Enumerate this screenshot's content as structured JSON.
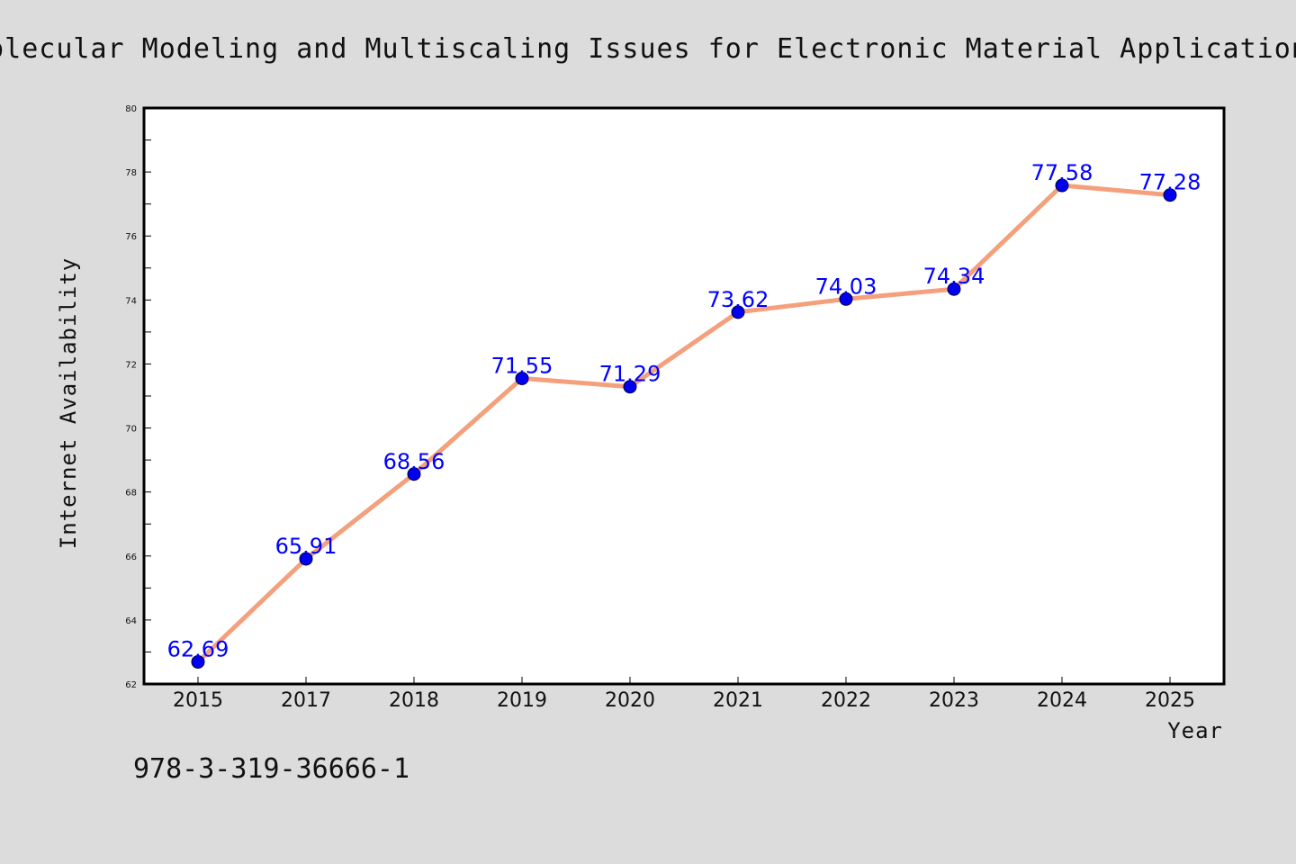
{
  "colors": {
    "background": "#dcdcdc",
    "plot_background": "#ffffff",
    "line": "#f4a07c",
    "marker": "#0000ee",
    "label": "#0000ff"
  },
  "footer": {
    "text": "978-3-319-36666-1"
  },
  "chart_data": {
    "type": "line",
    "title": "Molecular Modeling and Multiscaling Issues for Electronic Material Applications",
    "xlabel": "Year",
    "ylabel": "Internet Availability",
    "categories": [
      "2015",
      "2017",
      "2018",
      "2019",
      "2020",
      "2021",
      "2022",
      "2023",
      "2024",
      "2025"
    ],
    "series": [
      {
        "values": [
          62.69,
          65.91,
          68.56,
          71.55,
          71.29,
          73.62,
          74.03,
          74.34,
          77.58,
          77.28
        ],
        "labels": [
          "62.69",
          "65.91",
          "68.56",
          "71.55",
          "71.29",
          "73.62",
          "74.03",
          "74.34",
          "77.58",
          "77.28"
        ]
      }
    ],
    "ylim": [
      62,
      80
    ],
    "yticks": [
      "62",
      "64",
      "66",
      "68",
      "70",
      "72",
      "74",
      "76",
      "78",
      "80"
    ],
    "grid": false,
    "legend": "none"
  }
}
